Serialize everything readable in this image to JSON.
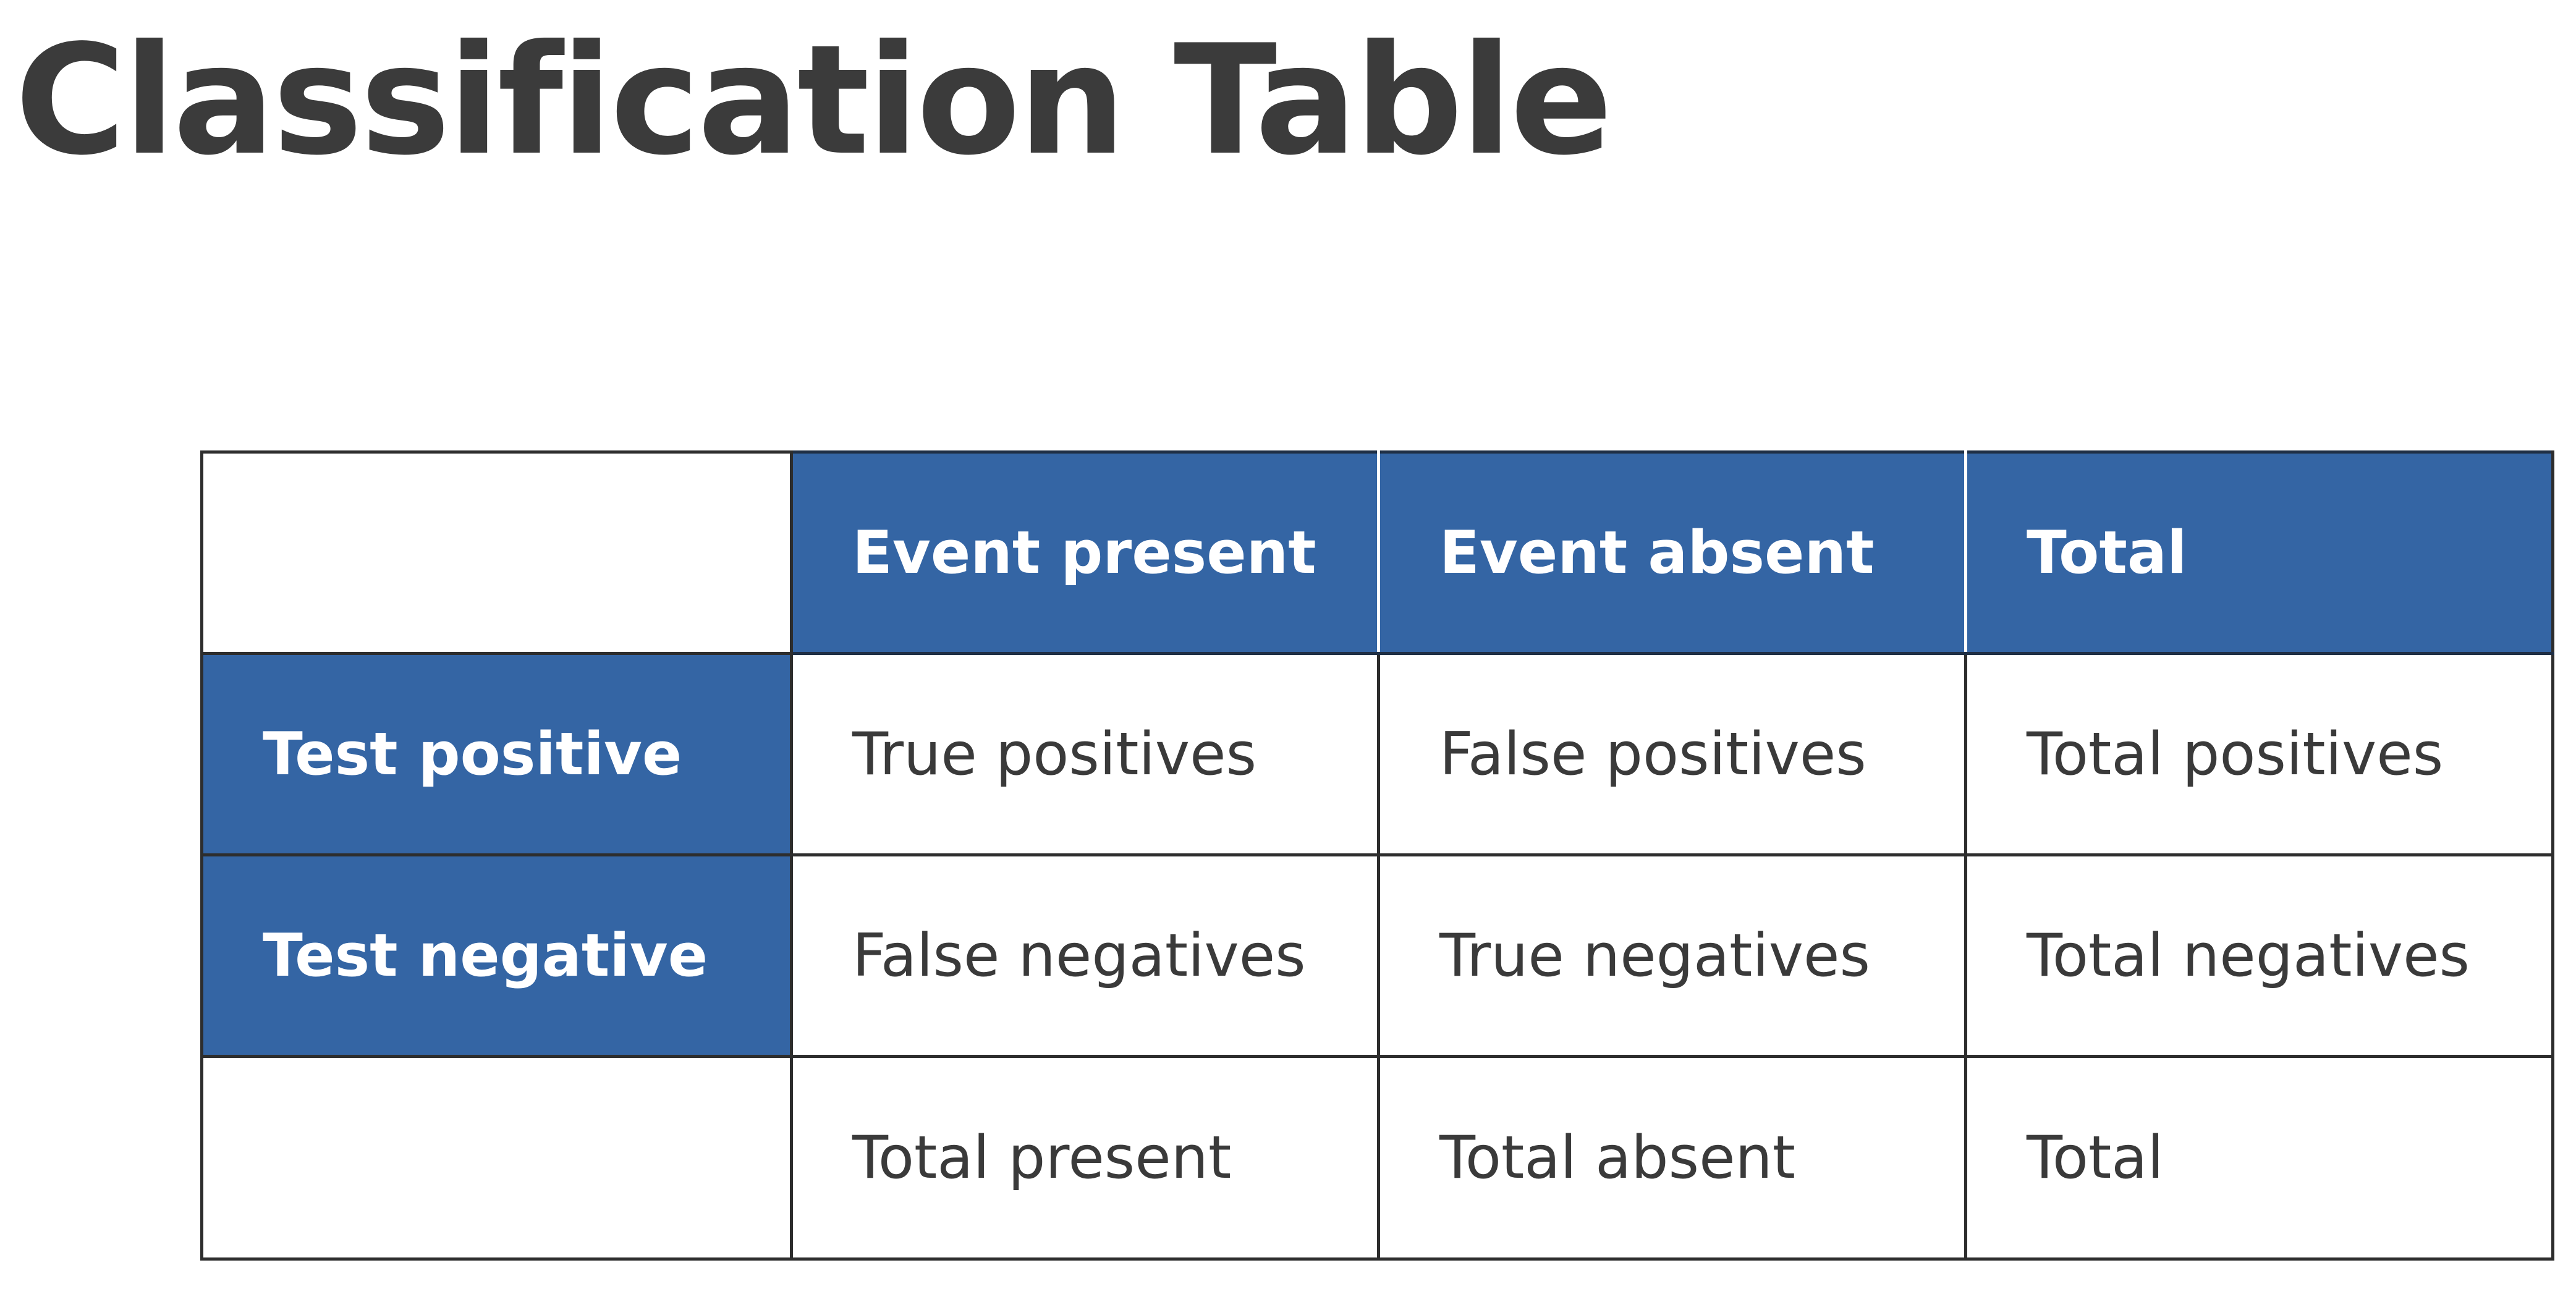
{
  "title": "Classification Table",
  "colors": {
    "header_fill": "#3465a4",
    "header_text": "#ffffff",
    "title_text": "#3b3b3b",
    "cell_text": "#3a3a3a",
    "border": "#2d2d2d"
  },
  "table": {
    "column_headers": [
      "",
      "Event present",
      "Event absent",
      "Total"
    ],
    "rows": [
      {
        "label": "Test positive",
        "cells": [
          "True positives",
          "False positives",
          "Total positives"
        ]
      },
      {
        "label": "Test negative",
        "cells": [
          "False negatives",
          "True negatives",
          "Total negatives"
        ]
      },
      {
        "label": "",
        "cells": [
          "Total present",
          "Total absent",
          "Total"
        ]
      }
    ]
  }
}
